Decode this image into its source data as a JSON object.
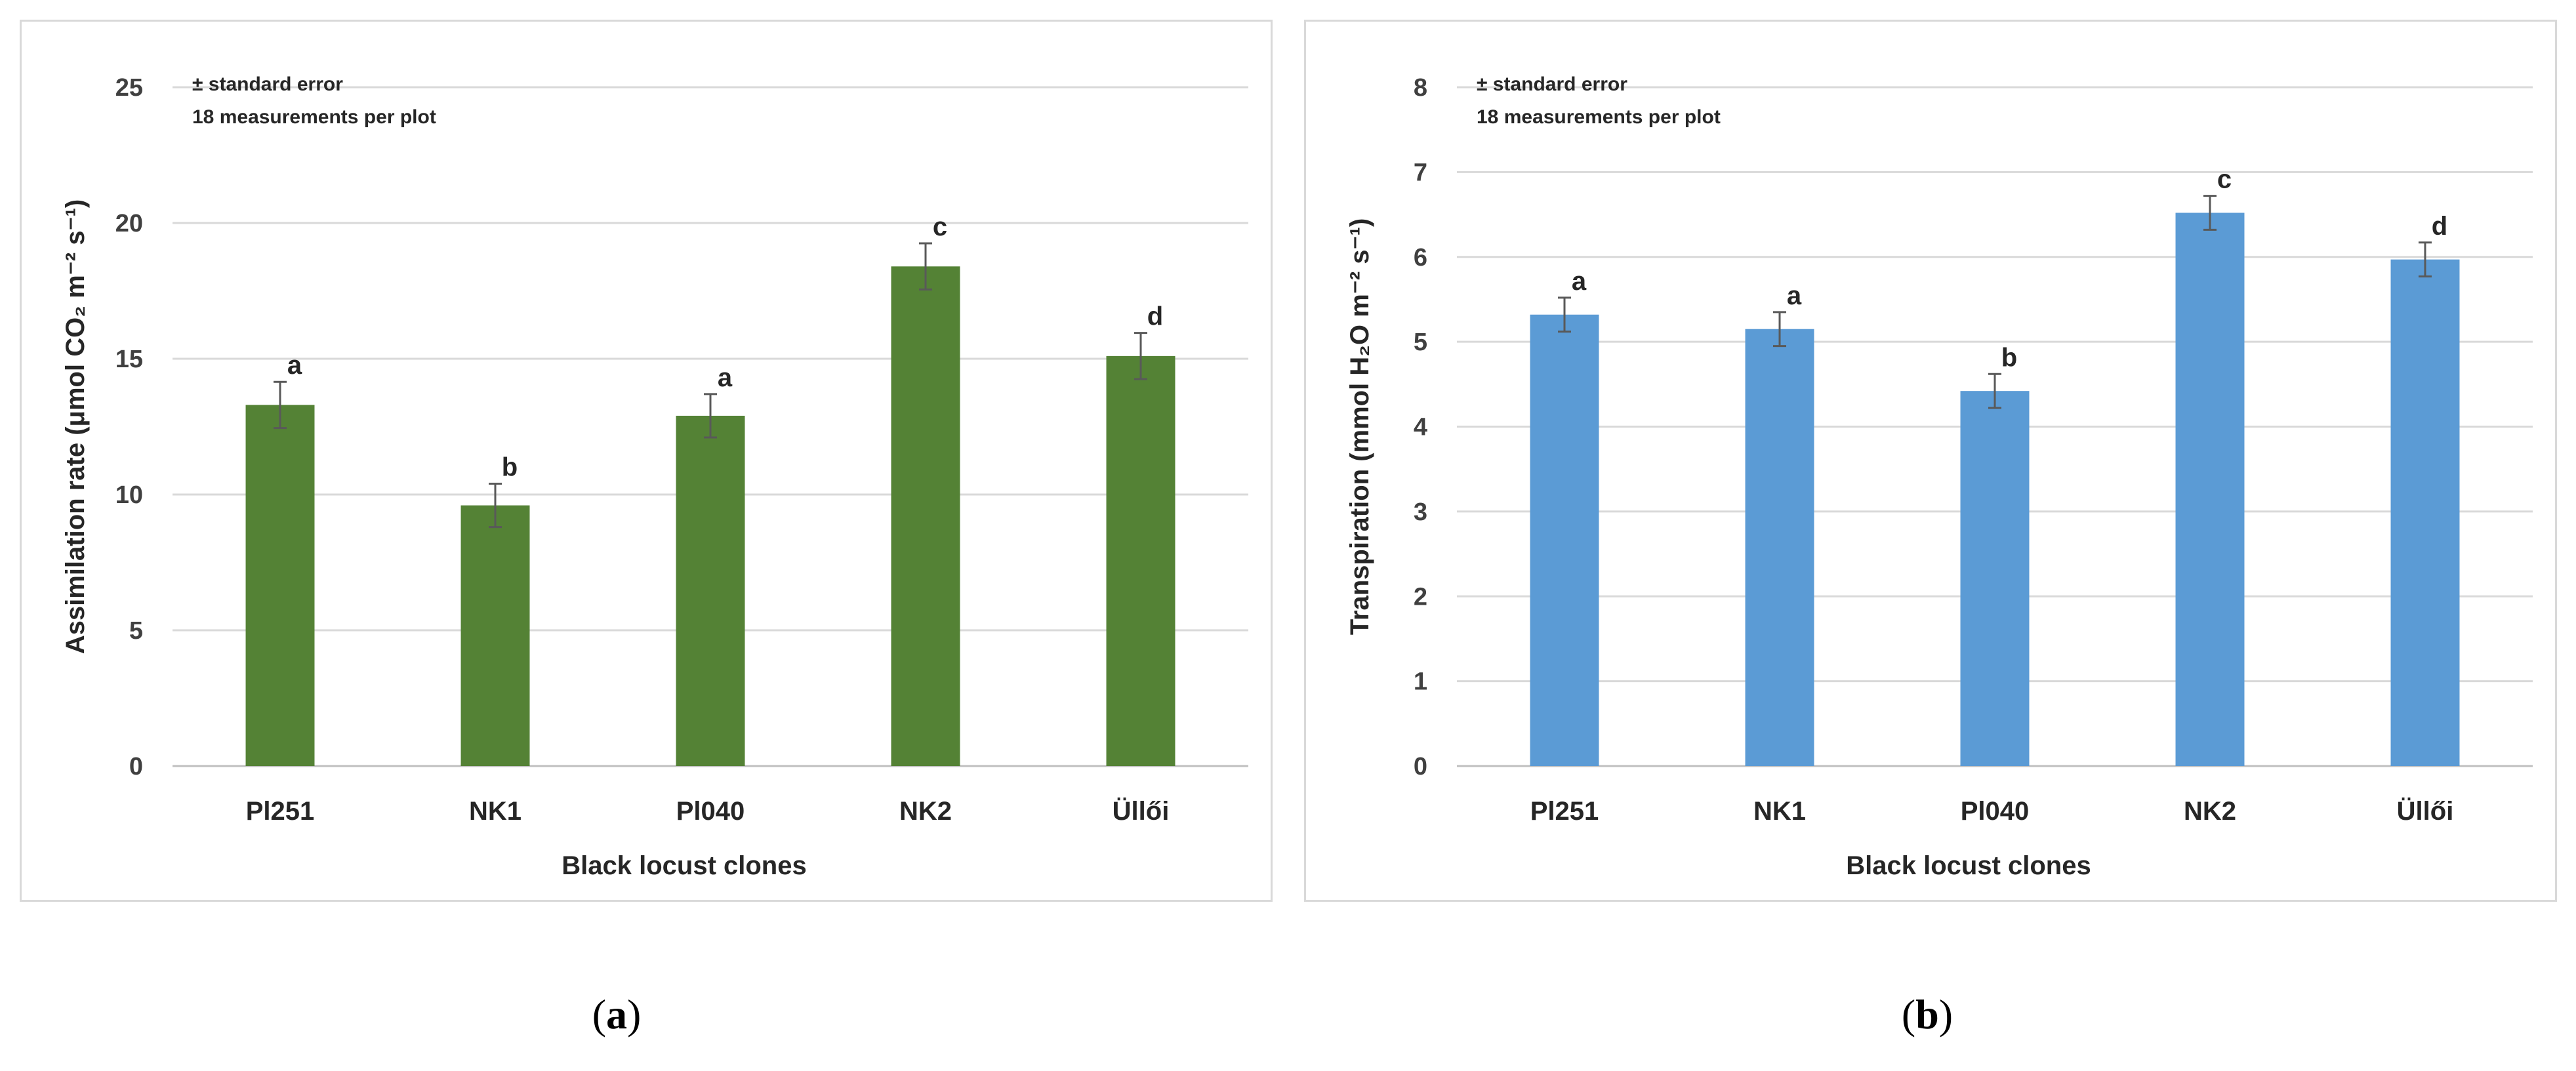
{
  "chart_data": [
    {
      "type": "bar",
      "panel": "a",
      "categories": [
        "Pl251",
        "NK1",
        "Pl040",
        "NK2",
        "Üllői"
      ],
      "values": [
        13.3,
        9.6,
        12.9,
        18.4,
        15.1
      ],
      "errors": [
        0.85,
        0.8,
        0.8,
        0.85,
        0.85
      ],
      "letters": [
        "a",
        "b",
        "a",
        "c",
        "d"
      ],
      "xlabel": "Black locust clones",
      "ylabel": "Assimilation rate (μmol CO₂ m⁻² s⁻¹)",
      "ylim": [
        0,
        25
      ],
      "yticks": [
        0,
        5,
        10,
        15,
        20,
        25
      ],
      "color": "#548235",
      "annotations": [
        "± standard error",
        "18 measurements per plot"
      ],
      "grid": true
    },
    {
      "type": "bar",
      "panel": "b",
      "categories": [
        "Pl251",
        "NK1",
        "Pl040",
        "NK2",
        "Üllői"
      ],
      "values": [
        5.32,
        5.15,
        4.42,
        6.52,
        5.97
      ],
      "errors": [
        0.2,
        0.2,
        0.2,
        0.2,
        0.2
      ],
      "letters": [
        "a",
        "a",
        "b",
        "c",
        "d"
      ],
      "xlabel": "Black locust clones",
      "ylabel": "Transpiration (mmol H₂O m⁻² s⁻¹)",
      "ylim": [
        0,
        8
      ],
      "yticks": [
        0,
        1,
        2,
        3,
        4,
        5,
        6,
        7,
        8
      ],
      "color": "#5b9bd5",
      "annotations": [
        "± standard error",
        "18 measurements per plot"
      ],
      "grid": true
    }
  ],
  "captions": {
    "a": "a",
    "b": "b"
  }
}
